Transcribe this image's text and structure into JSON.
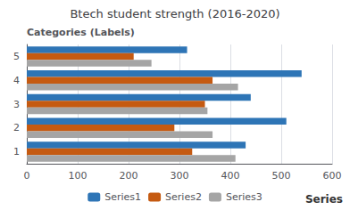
{
  "chart_data": {
    "type": "bar",
    "orientation": "horizontal",
    "title": "Btech student strength (2016-2020)",
    "ylabel": "Categories (Labels)",
    "annotations": [
      "Series"
    ],
    "categories": [
      "1",
      "2",
      "3",
      "4",
      "5"
    ],
    "series": [
      {
        "name": "Series1",
        "color": "#2E75B6",
        "values": [
          430,
          510,
          440,
          540,
          315
        ]
      },
      {
        "name": "Series2",
        "color": "#C55A11",
        "values": [
          325,
          290,
          350,
          365,
          210
        ]
      },
      {
        "name": "Series3",
        "color": "#A5A5A5",
        "values": [
          410,
          365,
          355,
          415,
          245
        ]
      }
    ],
    "xlim": [
      0,
      600
    ],
    "xticks": [
      0,
      100,
      200,
      300,
      400,
      500,
      600
    ],
    "grid": true,
    "legend": "bottom"
  }
}
